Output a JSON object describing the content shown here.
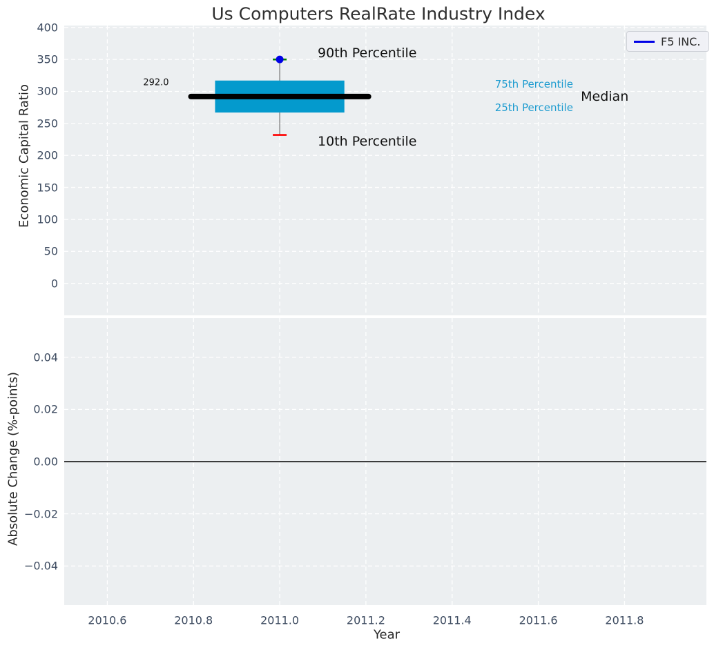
{
  "figure": {
    "title": "Us Computers RealRate Industry Index",
    "legend": {
      "label": "F5 INC."
    }
  },
  "colors": {
    "axes_bg": "#eceff1",
    "grid": "#ffffff",
    "tick_label": "#3d4b60",
    "text_dark": "#111111",
    "box_fill": "#049acd",
    "median_line": "#000000",
    "whisker": "#7a7a7a",
    "cap_90th": "#007f00",
    "cap_10th": "#ff0000",
    "marker_dot": "#0000e6",
    "legend_line": "#0000e6",
    "cyan_text": "#1e9cd0",
    "zero_line": "#000000"
  },
  "chart_data": [
    {
      "type": "boxplot",
      "panel": "top",
      "title": "Us Computers RealRate Industry Index",
      "ylabel": "Economic Capital Ratio",
      "series_name": "F5 INC.",
      "legend_position": "upper right",
      "grid": "white dashed, on",
      "xlim": [
        2010.5,
        2011.99
      ],
      "ylim": [
        -50,
        403
      ],
      "yticks": {
        "values": [
          400,
          350,
          300,
          250,
          200,
          150,
          100,
          50,
          0
        ],
        "labels": [
          "400",
          "350",
          "300",
          "250",
          "200",
          "150",
          "100",
          "50",
          "0"
        ]
      },
      "box": {
        "x": 2011.0,
        "p90": 350,
        "q3": 317,
        "median": 292.0,
        "q1": 267,
        "p10": 232,
        "box_halfwidth": 0.15,
        "median_halfwidth": 0.206,
        "cap_halfwidth": 0.016
      },
      "annotations": [
        {
          "name": "median-value-label",
          "text": "292.0",
          "x": 2010.713,
          "y": 314,
          "color": "#111111",
          "size": 13
        },
        {
          "name": "label-90th-percentile",
          "text": "90th Percentile",
          "x": 2011.203,
          "y": 360,
          "color": "#111111",
          "size": 19
        },
        {
          "name": "label-10th-percentile",
          "text": "10th Percentile",
          "x": 2011.203,
          "y": 222,
          "color": "#111111",
          "size": 19
        },
        {
          "name": "label-75th-percentile",
          "text": "75th Percentile",
          "x": 2011.59,
          "y": 311,
          "color": "#1e9cd0",
          "size": 15
        },
        {
          "name": "label-25th-percentile",
          "text": "25th Percentile",
          "x": 2011.59,
          "y": 275,
          "color": "#1e9cd0",
          "size": 15
        },
        {
          "name": "label-median",
          "text": "Median",
          "x": 2011.754,
          "y": 292,
          "color": "#111111",
          "size": 19
        }
      ]
    },
    {
      "type": "line",
      "panel": "bottom",
      "ylabel": "Absolute Change (%-points)",
      "xlabel": "Year",
      "grid": "white dashed, on",
      "xlim": [
        2010.5,
        2011.99
      ],
      "ylim": [
        -0.055,
        0.055
      ],
      "yticks": {
        "values": [
          0.04,
          0.02,
          0.0,
          -0.02,
          -0.04
        ],
        "labels": [
          "0.04",
          "0.02",
          "0.00",
          "−0.02",
          "−0.04"
        ]
      },
      "xticks": {
        "values": [
          2010.6,
          2010.8,
          2011.0,
          2011.2,
          2011.4,
          2011.6,
          2011.8
        ],
        "labels": [
          "2010.6",
          "2010.8",
          "2011.0",
          "2011.2",
          "2011.4",
          "2011.6",
          "2011.8"
        ]
      },
      "zero_line": 0.0,
      "series": []
    }
  ]
}
